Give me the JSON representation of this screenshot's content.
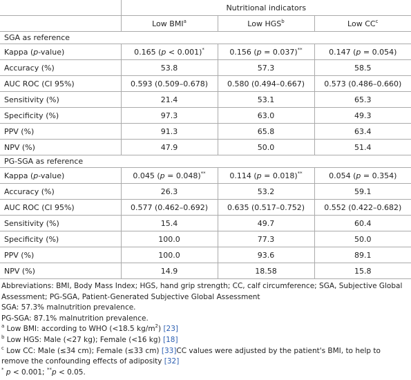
{
  "table": {
    "group_header": "Nutritional indicators",
    "columns": [
      [
        {
          "t": "Low BMI"
        },
        {
          "sup": "a"
        }
      ],
      [
        {
          "t": "Low HGS"
        },
        {
          "sup": "b"
        }
      ],
      [
        {
          "t": "Low CC"
        },
        {
          "sup": "c"
        }
      ]
    ],
    "sections": [
      {
        "title": "SGA as reference",
        "rows": [
          {
            "label": [
              {
                "t": "Kappa ("
              },
              {
                "i": "p"
              },
              {
                "t": "-value)"
              }
            ],
            "cells": [
              [
                {
                  "t": "0.165 ("
                },
                {
                  "i": "p"
                },
                {
                  "t": " < 0.001)"
                },
                {
                  "sup": "*"
                }
              ],
              [
                {
                  "t": "0.156 ("
                },
                {
                  "i": "p"
                },
                {
                  "t": " = 0.037)"
                },
                {
                  "sup": "**"
                }
              ],
              [
                {
                  "t": "0.147 ("
                },
                {
                  "i": "p"
                },
                {
                  "t": " = 0.054)"
                }
              ]
            ]
          },
          {
            "label": "Accuracy (%)",
            "cells": [
              "53.8",
              "57.3",
              "58.5"
            ]
          },
          {
            "label": "AUC ROC (CI 95%)",
            "cells": [
              "0.593 (0.509–0.678)",
              "0.580 (0.494–0.667)",
              "0.573 (0.486–0.660)"
            ]
          },
          {
            "label": "Sensitivity (%)",
            "cells": [
              "21.4",
              "53.1",
              "65.3"
            ]
          },
          {
            "label": "Specificity (%)",
            "cells": [
              "97.3",
              "63.0",
              "49.3"
            ]
          },
          {
            "label": "PPV (%)",
            "cells": [
              "91.3",
              "65.8",
              "63.4"
            ]
          },
          {
            "label": "NPV (%)",
            "cells": [
              "47.9",
              "50.0",
              "51.4"
            ]
          }
        ]
      },
      {
        "title": "PG-SGA as reference",
        "rows": [
          {
            "label": [
              {
                "t": "Kappa ("
              },
              {
                "i": "p"
              },
              {
                "t": "-value)"
              }
            ],
            "cells": [
              [
                {
                  "t": "0.045 ("
                },
                {
                  "i": "p"
                },
                {
                  "t": " = 0.048)"
                },
                {
                  "sup": "**"
                }
              ],
              [
                {
                  "t": "0.114 ("
                },
                {
                  "i": "p"
                },
                {
                  "t": " = 0.018)"
                },
                {
                  "sup": "**"
                }
              ],
              [
                {
                  "t": "0.054 ("
                },
                {
                  "i": "p"
                },
                {
                  "t": " = 0.354)"
                }
              ]
            ]
          },
          {
            "label": "Accuracy (%)",
            "cells": [
              "26.3",
              "53.2",
              "59.1"
            ]
          },
          {
            "label": "AUC ROC (CI 95%)",
            "cells": [
              "0.577 (0.462–0.692)",
              "0.635 (0.517–0.752)",
              "0.552 (0.422–0.682)"
            ]
          },
          {
            "label": "Sensitivity (%)",
            "cells": [
              "15.4",
              "49.7",
              "60.4"
            ]
          },
          {
            "label": "Specificity (%)",
            "cells": [
              "100.0",
              "77.3",
              "50.0"
            ]
          },
          {
            "label": "PPV (%)",
            "cells": [
              "100.0",
              "93.6",
              "89.1"
            ]
          },
          {
            "label": "NPV (%)",
            "cells": [
              "14.9",
              "18.58",
              "15.8"
            ]
          }
        ]
      }
    ],
    "footnotes": [
      "Abbreviations: BMI, Body Mass Index; HGS, hand grip strength; CC, calf circumference; SGA, Subjective Global Assessment; PG-SGA, Patient-Generated Subjective Global Assessment",
      "SGA: 57.3% malnutrition prevalence.",
      "PG-SGA: 87.1% malnutrition prevalence.",
      [
        {
          "sup": "a"
        },
        {
          "t": " Low BMI: according to WHO (<18.5 kg/m"
        },
        {
          "sup": "2"
        },
        {
          "t": ") "
        },
        {
          "ref": "[23]"
        }
      ],
      [
        {
          "sup": "b"
        },
        {
          "t": " Low HGS: Male (<27 kg); Female (<16 kg) "
        },
        {
          "ref": "[18]"
        }
      ],
      [
        {
          "sup": "c"
        },
        {
          "t": " Low CC: Male (≤34 cm); Female (≤33 cm) "
        },
        {
          "ref": "[33]"
        },
        {
          "t": "CC values were adjusted by the patient's BMI, to help to remove the confounding effects of adiposity "
        },
        {
          "ref": "[32]"
        }
      ],
      [
        {
          "sup": "*"
        },
        {
          "t": " "
        },
        {
          "i": "p"
        },
        {
          "t": " < 0.001; "
        },
        {
          "sup": "**"
        },
        {
          "i": "p"
        },
        {
          "t": " < 0.05."
        }
      ]
    ]
  }
}
